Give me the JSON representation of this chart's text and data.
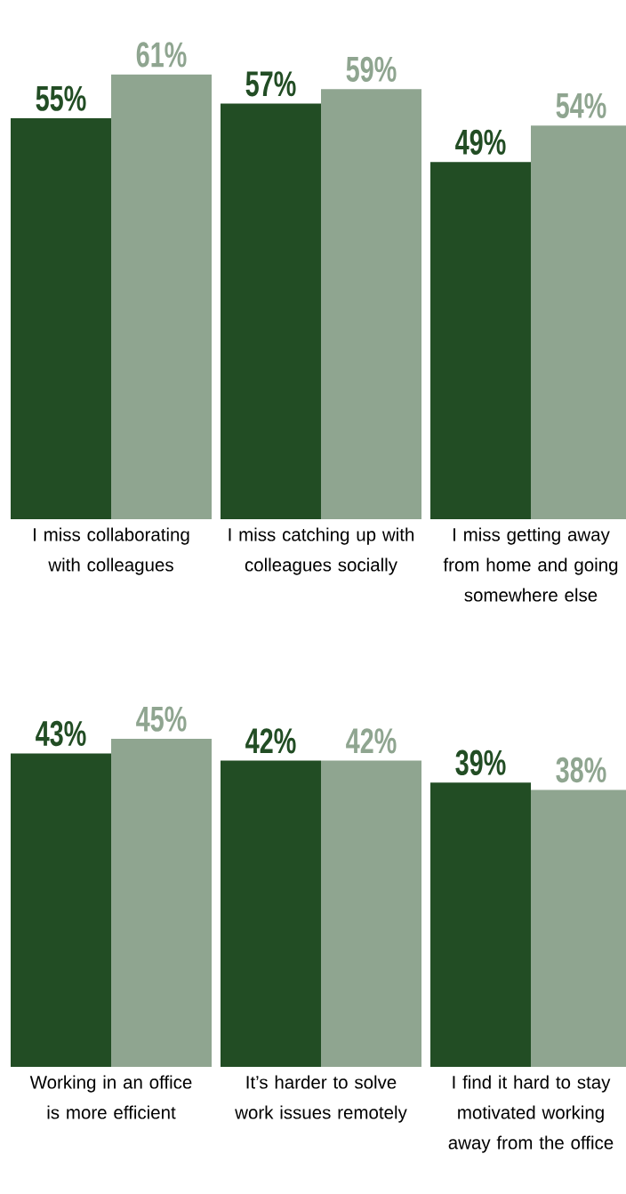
{
  "chart_data": [
    {
      "type": "bar",
      "categories": [
        "I miss collaborating with colleagues",
        "I miss catching up with colleagues socially",
        "I miss getting away from home and going somewhere else"
      ],
      "series": [
        {
          "color": "#224d24",
          "values": [
            55,
            57,
            49
          ],
          "value_labels": [
            "55%",
            "57%",
            "49%"
          ]
        },
        {
          "color": "#8fa590",
          "values": [
            61,
            59,
            54
          ],
          "value_labels": [
            "61%",
            "59%",
            "54%"
          ]
        }
      ]
    },
    {
      "type": "bar",
      "categories": [
        "Working in an office is more efficient",
        "It’s harder to solve work issues remotely",
        "I find it hard to stay motivated working away from the office"
      ],
      "series": [
        {
          "color": "#224d24",
          "values": [
            43,
            42,
            39
          ],
          "value_labels": [
            "43%",
            "42%",
            "39%"
          ]
        },
        {
          "color": "#8fa590",
          "values": [
            45,
            42,
            38
          ],
          "value_labels": [
            "45%",
            "42%",
            "38%"
          ]
        }
      ]
    }
  ]
}
